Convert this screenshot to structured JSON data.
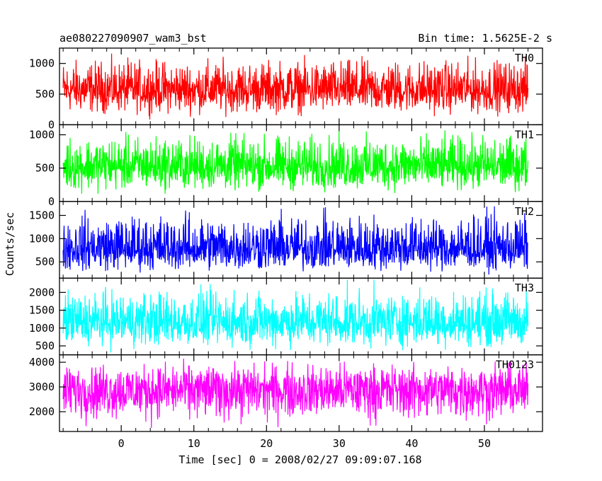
{
  "header": {
    "title": "ae080227090907_wam3_bst",
    "bin_time": "Bin time: 1.5625E-2 s"
  },
  "chart_data": {
    "type": "line",
    "title": "ae080227090907_wam3_bst",
    "xlabel": "Time [sec] 0 = 2008/02/27 09:09:07.168",
    "ylabel": "Counts/sec",
    "xlim": [
      -8.5,
      58
    ],
    "data_xrange": [
      -8,
      56
    ],
    "x_ticks": [
      0,
      10,
      20,
      30,
      40,
      50
    ],
    "grid": false,
    "series": [
      {
        "name": "TH0",
        "color": "#ff0000",
        "ylim": [
          0,
          1250
        ],
        "y_ticks": [
          0,
          500,
          1000
        ],
        "mean": 560,
        "min": 60,
        "max": 1230
      },
      {
        "name": "TH1",
        "color": "#00ff00",
        "ylim": [
          0,
          1150
        ],
        "y_ticks": [
          0,
          500,
          1000
        ],
        "mean": 520,
        "min": 40,
        "max": 1150
      },
      {
        "name": "TH2",
        "color": "#0000ff",
        "ylim": [
          150,
          1800
        ],
        "y_ticks": [
          500,
          1000,
          1500
        ],
        "mean": 770,
        "min": 150,
        "max": 1800
      },
      {
        "name": "TH3",
        "color": "#00ffff",
        "ylim": [
          250,
          2400
        ],
        "y_ticks": [
          500,
          1000,
          1500,
          2000
        ],
        "mean": 1150,
        "min": 250,
        "max": 2400
      },
      {
        "name": "TH0123",
        "color": "#ff00ff",
        "ylim": [
          1200,
          4300
        ],
        "y_ticks": [
          2000,
          3000,
          4000
        ],
        "mean": 2900,
        "min": 1200,
        "max": 4300
      }
    ]
  }
}
